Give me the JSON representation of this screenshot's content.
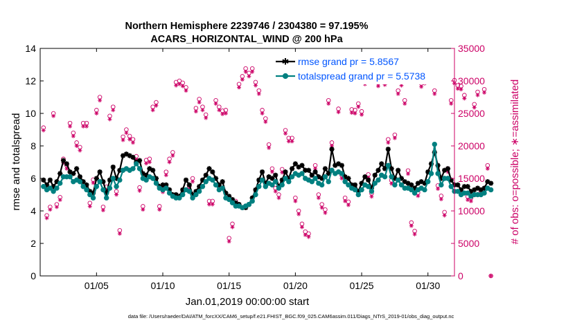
{
  "chart_data": {
    "type": "line",
    "title_line1": "Northern Hemisphere 2239746 / 2304380 = 97.195%",
    "title_line2": "ACARS_HORIZONTAL_WIND @ 200 hPa",
    "ylabel_left": "rmse and totalspread",
    "ylabel_right": "# of obs: o=possible; ∗=assimilated",
    "xlabel": "Jan.01,2019 00:00:00 start",
    "footer": "data file: /Users/raeder/DAI/ATM_forcXX/CAM6_setup/f.e21.FHIST_BGC.f09_025.CAM6assim.011/Diags_NTrS_2019-01/obs_diag_output.nc",
    "xlim": [
      0.75,
      32.0
    ],
    "ylim_left": [
      0,
      14
    ],
    "ylim_right": [
      0,
      35000
    ],
    "yticks_left": [
      0,
      2,
      4,
      6,
      8,
      10,
      12,
      14
    ],
    "yticks_right": [
      0,
      5000,
      10000,
      15000,
      20000,
      25000,
      30000,
      35000
    ],
    "xticks": [
      {
        "day": 5,
        "label": "01/05"
      },
      {
        "day": 10,
        "label": "01/10"
      },
      {
        "day": 15,
        "label": "01/15"
      },
      {
        "day": 20,
        "label": "01/20"
      },
      {
        "day": 25,
        "label": "01/25"
      },
      {
        "day": 30,
        "label": "01/30"
      }
    ],
    "x_start_day": 1.0,
    "x_step_days": 0.25,
    "series": [
      {
        "name": "rmse grand pr = 5.8567",
        "color": "#000000",
        "marker": "star",
        "values": [
          5.9,
          5.6,
          5.9,
          5.5,
          5.8,
          6.3,
          7.1,
          6.9,
          6.4,
          6.3,
          6.6,
          6.1,
          5.8,
          5.6,
          5.2,
          5.1,
          6.0,
          6.4,
          5.8,
          5.1,
          5.9,
          6.7,
          6.0,
          6.5,
          7.4,
          7.5,
          7.4,
          7.3,
          7.0,
          7.1,
          6.3,
          6.2,
          6.6,
          6.5,
          6.0,
          5.5,
          5.6,
          5.6,
          5.3,
          5.0,
          5.0,
          4.9,
          5.3,
          5.9,
          5.6,
          5.0,
          5.2,
          5.5,
          5.9,
          6.2,
          6.6,
          6.4,
          6.0,
          5.6,
          5.8,
          5.1,
          4.9,
          4.7,
          4.5,
          4.4,
          4.2,
          4.2,
          4.4,
          4.8,
          5.3,
          5.9,
          6.4,
          5.7,
          6.1,
          6.0,
          6.2,
          5.5,
          5.9,
          6.4,
          6.0,
          6.6,
          6.9,
          6.7,
          6.8,
          6.5,
          6.5,
          6.2,
          6.4,
          6.1,
          6.0,
          6.6,
          6.3,
          7.8,
          6.8,
          6.9,
          6.8,
          6.1,
          6.0,
          5.6,
          5.6,
          5.2,
          5.7,
          6.1,
          5.9,
          5.4,
          6.2,
          6.5,
          6.9,
          6.6,
          7.8,
          6.6,
          6.0,
          6.5,
          6.0,
          5.8,
          5.7,
          5.6,
          5.4,
          5.7,
          5.8,
          5.7,
          6.4,
          6.9,
          7.6,
          6.8,
          6.0,
          6.5,
          6.6,
          5.9,
          5.6,
          5.6,
          5.3,
          5.5,
          5.5,
          5.2,
          5.3,
          5.4,
          5.3,
          5.4,
          5.8,
          5.7
        ]
      },
      {
        "name": "totalspread grand pr = 5.5738",
        "color": "#008080",
        "marker": "circle",
        "values": [
          5.5,
          5.3,
          5.4,
          5.2,
          5.4,
          5.7,
          6.1,
          6.1,
          6.1,
          5.8,
          5.9,
          5.8,
          5.5,
          5.3,
          5.0,
          4.8,
          5.5,
          5.8,
          5.3,
          4.8,
          5.4,
          6.0,
          5.5,
          5.9,
          6.5,
          6.6,
          6.5,
          6.6,
          6.9,
          6.6,
          6.0,
          5.9,
          6.1,
          6.0,
          5.7,
          5.4,
          5.3,
          5.4,
          5.1,
          4.9,
          4.8,
          4.8,
          5.0,
          5.3,
          5.2,
          4.8,
          5.0,
          5.2,
          5.5,
          5.8,
          6.0,
          5.9,
          5.6,
          5.3,
          5.4,
          4.8,
          4.7,
          4.5,
          4.3,
          4.3,
          4.2,
          4.3,
          4.4,
          4.6,
          5.0,
          5.5,
          5.9,
          5.5,
          5.7,
          5.6,
          5.8,
          5.4,
          5.6,
          6.0,
          5.8,
          6.1,
          6.3,
          6.2,
          6.3,
          6.0,
          5.9,
          5.8,
          6.0,
          5.7,
          5.6,
          6.1,
          5.8,
          6.5,
          6.3,
          6.4,
          6.3,
          5.8,
          5.6,
          5.4,
          5.3,
          5.0,
          5.3,
          5.6,
          5.5,
          5.2,
          5.7,
          5.9,
          6.2,
          6.1,
          6.8,
          6.1,
          5.6,
          5.9,
          5.6,
          5.4,
          5.4,
          5.3,
          5.1,
          5.3,
          5.4,
          5.3,
          5.8,
          6.3,
          8.1,
          6.3,
          5.6,
          6.0,
          6.0,
          5.5,
          5.2,
          5.2,
          5.0,
          5.1,
          5.1,
          4.9,
          5.0,
          5.0,
          5.0,
          5.1,
          5.4,
          5.3
        ]
      }
    ],
    "obs_counts": {
      "name": "# of obs (right axis)",
      "color": "#cc0066",
      "possible_marker": "circle",
      "assimilated_marker": "star",
      "x_start_day": 1.0,
      "x_step_days": 0.25,
      "possible": [
        22800,
        9300,
        10600,
        25000,
        11000,
        12100,
        18000,
        17000,
        23500,
        22000,
        20500,
        19800,
        23500,
        23500,
        11200,
        14800,
        25500,
        27500,
        10600,
        13700,
        24600,
        26000,
        13000,
        7000,
        21400,
        22500,
        21500,
        21000,
        18400,
        13600,
        10700,
        17800,
        18000,
        26000,
        26700,
        10700,
        13400,
        16000,
        18000,
        19000,
        29800,
        30000,
        29700,
        29000,
        13800,
        15000,
        25800,
        27200,
        26000,
        24800,
        11500,
        11500,
        27000,
        26000,
        25400,
        25500,
        5800,
        8000,
        11500,
        29500,
        30700,
        31900,
        31200,
        31900,
        29800,
        28500,
        25500,
        24200,
        20200,
        16500,
        13500,
        12500,
        16400,
        22400,
        21200,
        21200,
        12000,
        10000,
        8000,
        6800,
        6500,
        15000,
        17000,
        12500,
        11000,
        10200,
        27000,
        20500,
        31600,
        25700,
        15500,
        12000,
        11400,
        25600,
        25500,
        26500,
        25300,
        30000,
        15600,
        12700,
        31600,
        29700,
        30800,
        29900,
        21000,
        14700,
        21700,
        28500,
        29800,
        27000,
        16200,
        8200,
        6900,
        12800,
        29600,
        30100,
        30500,
        30400,
        28500,
        13900,
        12300,
        9800,
        16500,
        27000,
        30100,
        29300,
        29200,
        27800,
        12200,
        12000,
        26400,
        28300,
        13000,
        28700,
        17000,
        0
      ],
      "assimilated": [
        22400,
        8900,
        10200,
        24600,
        10600,
        11700,
        17400,
        16500,
        23000,
        21500,
        20000,
        19300,
        23000,
        23000,
        10700,
        14300,
        25000,
        27000,
        10100,
        13200,
        24100,
        25500,
        12500,
        6500,
        20900,
        22000,
        21000,
        20500,
        17900,
        13100,
        10200,
        17300,
        17500,
        25500,
        26200,
        10200,
        12900,
        15500,
        17500,
        18500,
        29300,
        29500,
        29200,
        28500,
        13300,
        14500,
        25300,
        26700,
        25500,
        24300,
        11000,
        11000,
        26500,
        25500,
        24900,
        25000,
        5300,
        7500,
        11000,
        29000,
        30200,
        31400,
        30700,
        31400,
        29300,
        28000,
        25000,
        23700,
        19700,
        16000,
        13000,
        12000,
        15900,
        21900,
        20700,
        20700,
        11500,
        9500,
        7500,
        6300,
        6000,
        14500,
        16500,
        12000,
        10500,
        9700,
        26500,
        20000,
        31100,
        25200,
        15000,
        11500,
        10900,
        25100,
        25000,
        26000,
        24800,
        29500,
        15100,
        12200,
        31100,
        29200,
        30300,
        29400,
        20500,
        14200,
        21200,
        28000,
        29300,
        26500,
        15700,
        7700,
        6400,
        12300,
        29100,
        29600,
        30000,
        29900,
        28000,
        13400,
        11800,
        9300,
        16000,
        26500,
        29600,
        28800,
        28700,
        27300,
        11700,
        11500,
        25900,
        27800,
        12500,
        28200,
        16500,
        0
      ]
    }
  }
}
